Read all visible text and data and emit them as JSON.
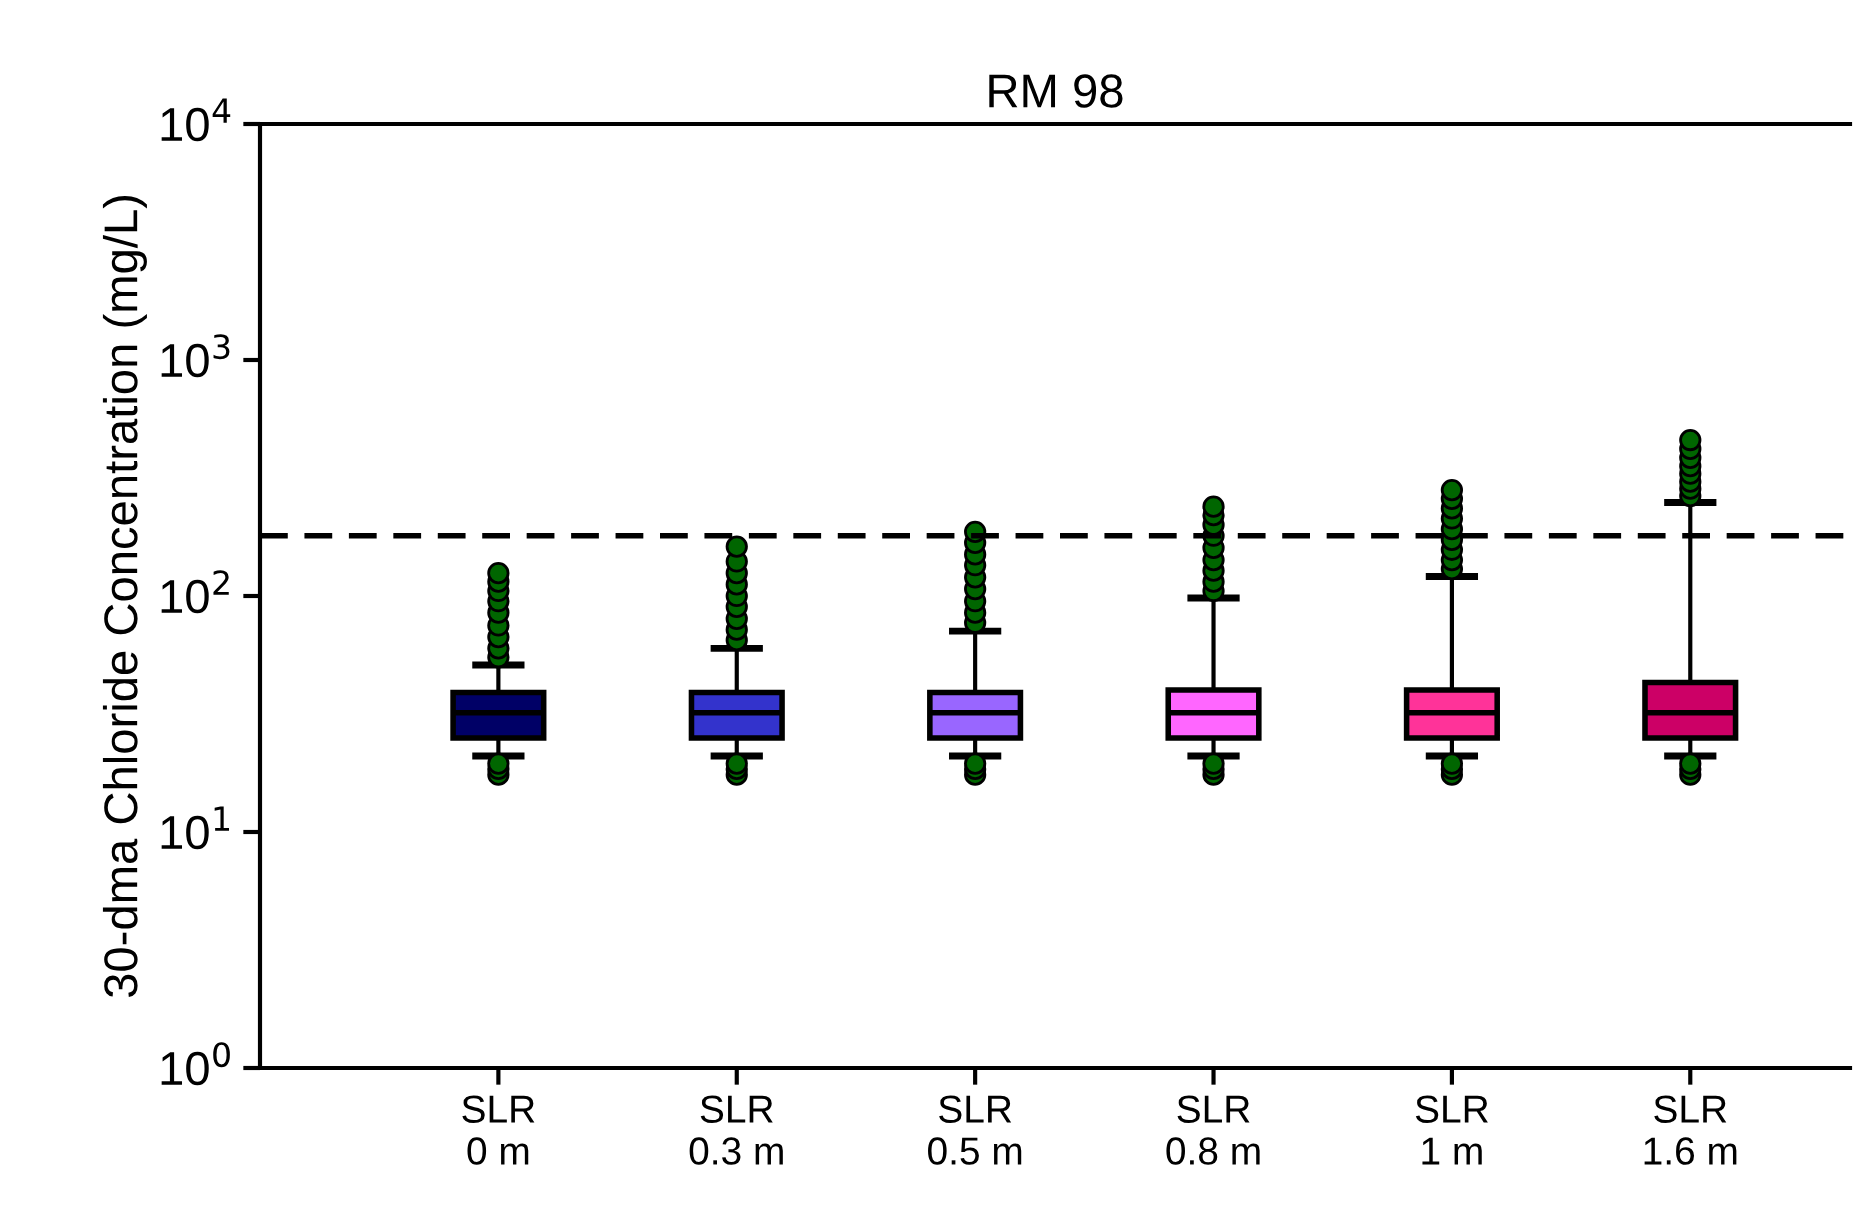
{
  "chart_data": {
    "type": "box",
    "title": "RM 98",
    "ylabel": "30-dma Chloride Concentration (mg/L)",
    "categories": [
      "SLR\n0 m",
      "SLR\n0.3 m",
      "SLR\n0.5 m",
      "SLR\n0.8 m",
      "SLR\n1 m",
      "SLR\n1.6 m"
    ],
    "colors": [
      "#000066",
      "#3333cc",
      "#9966ff",
      "#ff66ff",
      "#ff3399",
      "#cc0066"
    ],
    "log": true,
    "ylim": [
      1,
      10000
    ],
    "yticks": [
      {
        "value": 1,
        "label": "10$^{0}$"
      },
      {
        "value": 10,
        "label": "10$^{1}$"
      },
      {
        "value": 100,
        "label": "10$^{2}$"
      },
      {
        "value": 1000,
        "label": "10$^{3}$"
      },
      {
        "value": 10000,
        "label": "10$^{4}$"
      }
    ],
    "boxes": [
      {
        "low": 21,
        "q1": 25,
        "median": 32,
        "q3": 39,
        "high": 51,
        "outliers": [
          17.5,
          18.5,
          19.5,
          55,
          60,
          67,
          75,
          85,
          95,
          105,
          115,
          125
        ]
      },
      {
        "low": 21,
        "q1": 25,
        "median": 32,
        "q3": 39,
        "high": 60,
        "outliers": [
          17.5,
          18.5,
          19.5,
          65,
          72,
          80,
          90,
          100,
          112,
          125,
          140,
          162
        ]
      },
      {
        "low": 21,
        "q1": 25,
        "median": 32,
        "q3": 39,
        "high": 71,
        "outliers": [
          17.5,
          18.5,
          19.5,
          77,
          85,
          95,
          107,
          120,
          135,
          150,
          168,
          187
        ]
      },
      {
        "low": 21,
        "q1": 25,
        "median": 32,
        "q3": 40,
        "high": 98,
        "outliers": [
          17.5,
          18.5,
          19.5,
          105,
          115,
          128,
          142,
          160,
          180,
          200,
          220,
          239
        ]
      },
      {
        "low": 21,
        "q1": 25,
        "median": 32,
        "q3": 40,
        "high": 121,
        "outliers": [
          17.5,
          18.5,
          19.5,
          130,
          142,
          157,
          173,
          192,
          213,
          235,
          258,
          281
        ]
      },
      {
        "low": 21,
        "q1": 25,
        "median": 32,
        "q3": 43,
        "high": 249,
        "outliers": [
          17.5,
          18.5,
          19.5,
          265,
          285,
          305,
          330,
          355,
          385,
          420,
          458
        ]
      }
    ],
    "ref_lines": [
      {
        "axis": "y",
        "value": 180,
        "color": "#000000",
        "line_style": "dashed"
      }
    ],
    "grid": false,
    "legend": false
  }
}
